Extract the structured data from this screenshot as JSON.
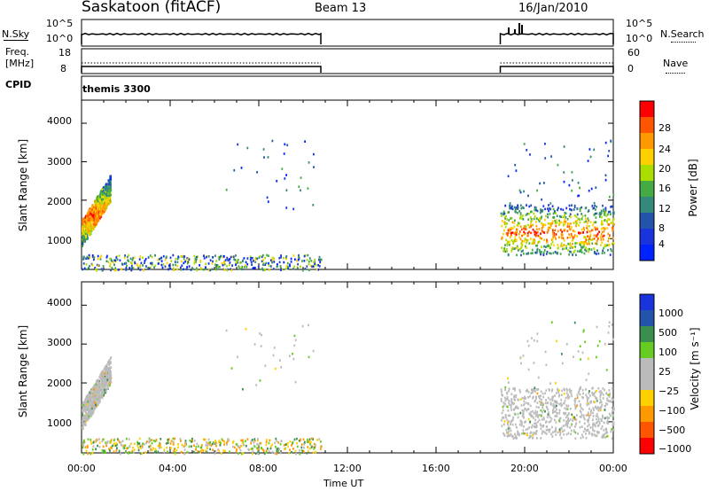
{
  "header": {
    "station": "Saskatoon (fitACF)",
    "beam": "Beam 13",
    "date": "16/Jan/2010"
  },
  "nsky": {
    "label": "N.Sky",
    "ticks": [
      "10^5",
      "10^0"
    ],
    "right_label": "N.Search",
    "right_ticks": [
      "10^5",
      "10^0"
    ]
  },
  "freq": {
    "label_line1": "Freq.",
    "label_line2": "[MHz]",
    "ticks": [
      "18",
      "8"
    ],
    "right_label": "Nave",
    "right_ticks": [
      "60",
      "0"
    ]
  },
  "cpid": {
    "label": "CPID",
    "program": "themis 3300"
  },
  "xaxis": {
    "title": "Time UT",
    "ticks": [
      "00:00",
      "04:00",
      "08:00",
      "12:00",
      "16:00",
      "20:00",
      "00:00"
    ]
  },
  "chart_data": [
    {
      "type": "heatmap",
      "panel": "power",
      "ylabel": "Slant Range [km]",
      "yticks": [
        "4000",
        "3000",
        "2000",
        "1000"
      ],
      "ylim": [
        200,
        4600
      ],
      "xlim_hours": [
        0,
        24
      ],
      "colorbar": {
        "label": "Power [dB]",
        "ticks": [
          "28",
          "24",
          "20",
          "16",
          "12",
          "8",
          "4"
        ],
        "colors": [
          "#ff0000",
          "#ff5500",
          "#ff9900",
          "#ffd000",
          "#aadd00",
          "#44aa44",
          "#33897a",
          "#2255aa",
          "#1a33dd",
          "#0022ff"
        ]
      },
      "segments": [
        {
          "start_h": 0.0,
          "end_h": 1.3,
          "range_km": [
            800,
            2600
          ],
          "level": "high"
        },
        {
          "start_h": 0.0,
          "end_h": 10.8,
          "range_km": [
            200,
            600
          ],
          "level": "low"
        },
        {
          "start_h": 18.9,
          "end_h": 24.0,
          "range_km": [
            600,
            1900
          ],
          "level": "high"
        }
      ]
    },
    {
      "type": "heatmap",
      "panel": "velocity",
      "ylabel": "Slant Range [km]",
      "yticks": [
        "4000",
        "3000",
        "2000",
        "1000"
      ],
      "ylim": [
        200,
        4600
      ],
      "xlim_hours": [
        0,
        24
      ],
      "colorbar": {
        "label": "Velocity [m s⁻¹]",
        "ticks": [
          "1000",
          "500",
          "100",
          "25",
          "−25",
          "−100",
          "−500",
          "−1000"
        ],
        "colors": [
          "#1a33dd",
          "#2255aa",
          "#3a8f50",
          "#66cc22",
          "#bbbbbb",
          "#bbbbbb",
          "#ffd000",
          "#ff9900",
          "#ff5500",
          "#ff0000"
        ]
      },
      "segments": [
        {
          "start_h": 0.0,
          "end_h": 1.3,
          "range_km": [
            800,
            2600
          ],
          "level": "ground"
        },
        {
          "start_h": 0.0,
          "end_h": 10.8,
          "range_km": [
            200,
            600
          ],
          "level": "low"
        },
        {
          "start_h": 18.9,
          "end_h": 24.0,
          "range_km": [
            600,
            1900
          ],
          "level": "ground"
        }
      ]
    }
  ],
  "operation": {
    "gap_start_h": 10.8,
    "gap_end_h": 18.9
  }
}
